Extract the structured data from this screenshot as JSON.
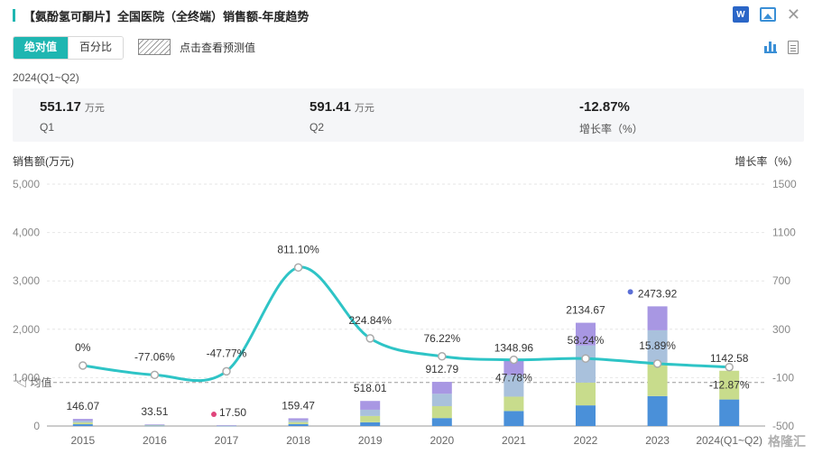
{
  "header": {
    "title": "【氨酚氢可酮片】全国医院（全终端）销售额-年度趋势"
  },
  "toolbar": {
    "tab_absolute": "绝对值",
    "tab_percent": "百分比",
    "forecast_label": "点击查看预测值"
  },
  "summary": {
    "period": "2024(Q1~Q2)",
    "q1_value": "551.17",
    "q1_unit": "万元",
    "q1_label": "Q1",
    "q2_value": "591.41",
    "q2_unit": "万元",
    "q2_label": "Q2",
    "growth_value": "-12.87%",
    "growth_label": "增长率（%）"
  },
  "icons": [
    "word-export-icon",
    "image-export-icon",
    "close-icon",
    "bar-chart-icon",
    "document-icon"
  ],
  "colors": {
    "accent": "#1fb6b1",
    "line": "#2ec4c6",
    "seg_blue": "#4a90d9",
    "seg_green": "#c8dc8c",
    "seg_steel": "#a9c1dc",
    "seg_purple": "#a897e3"
  },
  "watermark": "格隆汇",
  "chart_data": {
    "type": "bar",
    "categories": [
      "2015",
      "2016",
      "2017",
      "2018",
      "2019",
      "2020",
      "2021",
      "2022",
      "2023",
      "2024(Q1~Q2)"
    ],
    "bar_labels": [
      "146.07",
      "33.51",
      "17.50",
      "159.47",
      "518.01",
      "912.79",
      "1348.96",
      "2134.67",
      "2473.92",
      "1142.58"
    ],
    "values": [
      146.07,
      33.51,
      17.5,
      159.47,
      518.01,
      912.79,
      1348.96,
      2134.67,
      2473.92,
      1142.58
    ],
    "stack_fractions": [
      [
        0.25,
        0.25,
        0.25,
        0.25
      ],
      [
        0.25,
        0.25,
        0.25,
        0.25
      ],
      [
        0.25,
        0.25,
        0.25,
        0.25
      ],
      [
        0.25,
        0.25,
        0.25,
        0.25
      ],
      [
        0.15,
        0.25,
        0.25,
        0.35
      ],
      [
        0.18,
        0.27,
        0.28,
        0.27
      ],
      [
        0.23,
        0.22,
        0.33,
        0.22
      ],
      [
        0.2,
        0.22,
        0.36,
        0.22
      ],
      [
        0.25,
        0.28,
        0.27,
        0.2
      ],
      [
        0.48,
        0.52,
        0,
        0
      ]
    ],
    "growth_series": {
      "values": [
        0,
        -77.06,
        -47.77,
        811.1,
        224.84,
        76.22,
        47.78,
        58.24,
        15.89,
        -12.87
      ],
      "labels": [
        "0%",
        "-77.06%",
        "-47.77%",
        "811.10%",
        "224.84%",
        "76.22%",
        "47.78%",
        "58.24%",
        "15.89%",
        "-12.87%"
      ]
    },
    "ylabel": "销售额(万元)",
    "y2label": "增长率（%）",
    "ylim": [
      0,
      5000
    ],
    "y_ticks": [
      "0",
      "1,000",
      "2,000",
      "3,000",
      "4,000",
      "5,000"
    ],
    "y2lim": [
      -500,
      1500
    ],
    "y2_ticks": [
      "-500",
      "-100",
      "300",
      "700",
      "1100",
      "1500"
    ],
    "average_label": "均值",
    "average_value": 900,
    "grid": true
  }
}
